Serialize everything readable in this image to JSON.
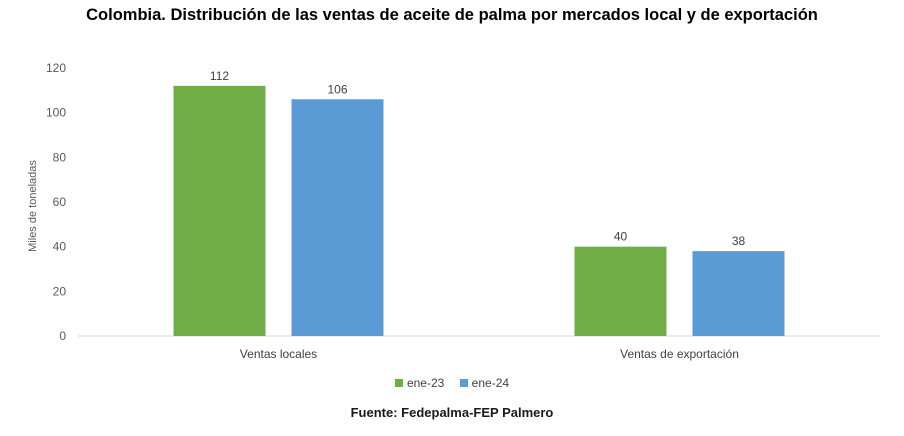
{
  "chart_data": {
    "type": "bar",
    "title": "Colombia. Distribución de las ventas de aceite de palma por mercados local y de exportación",
    "xlabel": "",
    "ylabel": "Miles de toneladas",
    "ylim": [
      0,
      120
    ],
    "yticks": [
      "0",
      "20",
      "40",
      "60",
      "80",
      "100",
      "120"
    ],
    "categories": [
      "Ventas locales",
      "Ventas de exportación"
    ],
    "series": [
      {
        "name": "ene-23",
        "values": [
          112,
          40
        ],
        "color": "#70ad47"
      },
      {
        "name": "ene-24",
        "values": [
          106,
          38
        ],
        "color": "#5b9bd5"
      }
    ],
    "grid": false,
    "legend_position": "bottom",
    "source": "Fuente: Fedepalma-FEP Palmero"
  }
}
